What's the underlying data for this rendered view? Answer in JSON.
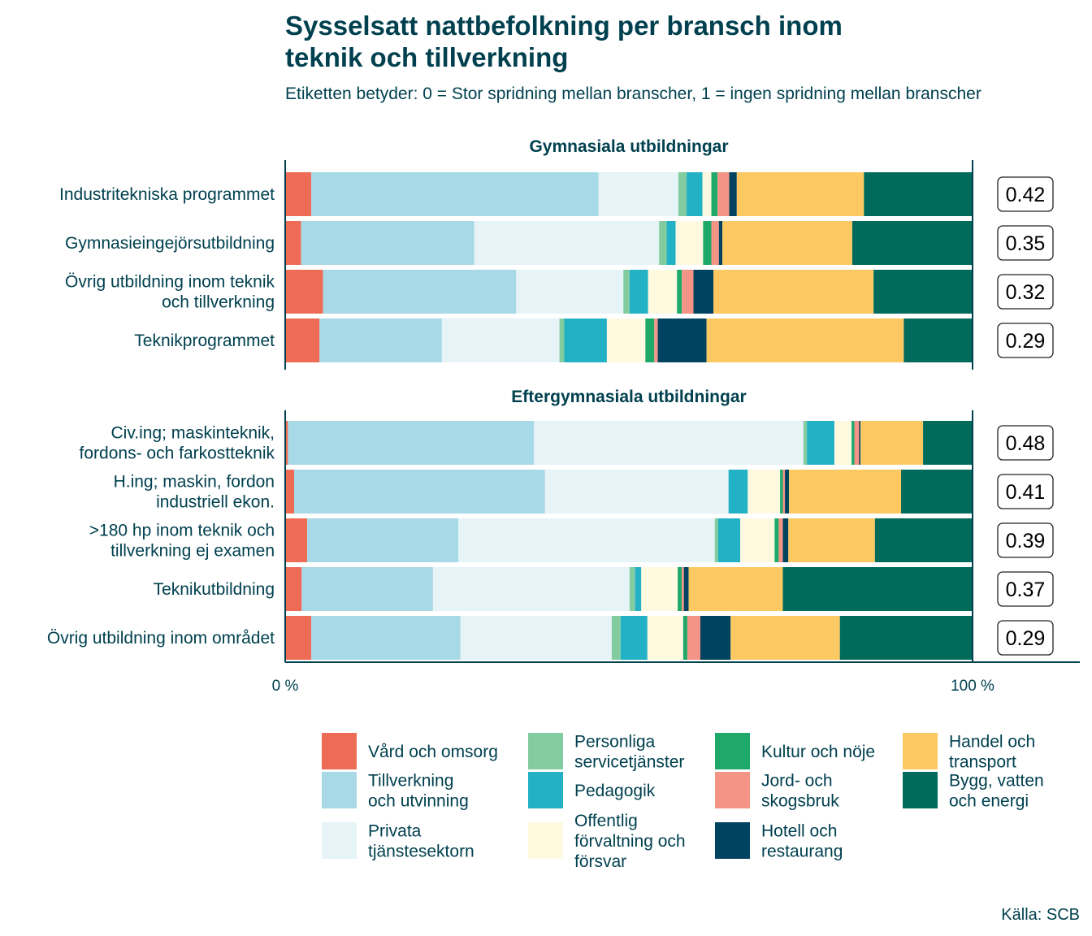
{
  "title_line1": "Sysselsatt nattbefolkning per bransch inom",
  "title_line2": "teknik och tillverkning",
  "subtitle": "Etiketten betyder: 0 = Stor spridning mellan branscher, 1 = ingen spridning mellan branscher",
  "source": "Källa: SCB",
  "chart_data": {
    "type": "bar",
    "orientation": "horizontal",
    "stacked": "percent",
    "xlim": [
      0,
      100
    ],
    "x_tick_labels": [
      "0 %",
      "100 %"
    ],
    "legend_position": "bottom",
    "series": [
      {
        "name": "Vård och omsorg",
        "color": "#ee6c55"
      },
      {
        "name": "Tillverkning och utvinning",
        "color": "#a8d9e6"
      },
      {
        "name": "Privata tjänstesektorn",
        "color": "#e6f3f7"
      },
      {
        "name": "Personliga servicetjänster",
        "color": "#82cc9f"
      },
      {
        "name": "Pedagogik",
        "color": "#23b1c6"
      },
      {
        "name": "Offentlig förvaltning och försvar",
        "color": "#fff9e0"
      },
      {
        "name": "Kultur och nöje",
        "color": "#1ea96a"
      },
      {
        "name": "Jord- och skogsbruk",
        "color": "#f39486"
      },
      {
        "name": "Hotell och restaurang",
        "color": "#004360"
      },
      {
        "name": "Handel och transport",
        "color": "#fcc862"
      },
      {
        "name": "Bygg, vatten och energi",
        "color": "#006b5b"
      }
    ],
    "panels": [
      {
        "title": "Gymnasiala utbildningar",
        "rows": [
          {
            "label": [
              "Industritekniska programmet"
            ],
            "score": "0.42",
            "values": [
              3.8,
              41.8,
              11.6,
              1.2,
              2.3,
              1.3,
              0.9,
              1.7,
              1.1,
              18.5,
              15.8
            ]
          },
          {
            "label": [
              "Gymnasieingejörsutbildning"
            ],
            "score": "0.35",
            "values": [
              2.3,
              25.2,
              26.9,
              1.1,
              1.3,
              4.0,
              1.2,
              1.1,
              0.5,
              18.9,
              17.5
            ]
          },
          {
            "label": [
              "Övrig utbildning inom teknik",
              "och tillverkning"
            ],
            "score": "0.32",
            "values": [
              5.5,
              28.1,
              15.6,
              0.9,
              2.7,
              4.2,
              0.7,
              1.7,
              2.9,
              23.3,
              14.4
            ]
          },
          {
            "label": [
              "Teknikprogrammet"
            ],
            "score": "0.29",
            "values": [
              5.0,
              17.8,
              17.1,
              0.7,
              6.2,
              5.6,
              1.3,
              0.5,
              7.1,
              28.7,
              10.0
            ]
          }
        ]
      },
      {
        "title": "Eftergymnasiala utbildningar",
        "rows": [
          {
            "label": [
              "Civ.ing; maskinteknik,",
              "fordons- och farkostteknik"
            ],
            "score": "0.48",
            "values": [
              0.4,
              35.8,
              39.2,
              0.5,
              4.0,
              2.5,
              0.4,
              0.7,
              0.2,
              9.1,
              7.2
            ]
          },
          {
            "label": [
              "H.ing; maskin, fordon",
              "industriell ekon."
            ],
            "score": "0.41",
            "values": [
              1.3,
              36.5,
              26.7,
              0.0,
              2.8,
              4.7,
              0.4,
              0.3,
              0.6,
              16.3,
              10.4
            ]
          },
          {
            "label": [
              ">180 hp inom teknik och",
              "tillverkning ej examen"
            ],
            "score": "0.39",
            "values": [
              3.2,
              22.0,
              37.3,
              0.5,
              3.2,
              5.0,
              0.6,
              0.6,
              0.8,
              12.6,
              14.2
            ]
          },
          {
            "label": [
              "Teknikutbildning"
            ],
            "score": "0.37",
            "values": [
              2.4,
              19.1,
              28.6,
              0.8,
              0.9,
              5.3,
              0.6,
              0.3,
              0.7,
              13.7,
              27.6
            ]
          },
          {
            "label": [
              "Övrig utbildning inom området"
            ],
            "score": "0.29",
            "values": [
              3.8,
              21.7,
              22.0,
              1.3,
              3.9,
              5.2,
              0.6,
              1.9,
              4.4,
              15.9,
              19.3
            ]
          }
        ]
      }
    ]
  },
  "legend": {
    "columns": [
      [
        {
          "series": 0,
          "lines": [
            "Vård och omsorg"
          ]
        },
        {
          "series": 1,
          "lines": [
            "Tillverkning",
            "och utvinning"
          ]
        },
        {
          "series": 2,
          "lines": [
            "Privata",
            "tjänstesektorn"
          ]
        }
      ],
      [
        {
          "series": 3,
          "lines": [
            "Personliga",
            "servicetjänster"
          ]
        },
        {
          "series": 4,
          "lines": [
            "Pedagogik"
          ]
        },
        {
          "series": 5,
          "lines": [
            "Offentlig",
            "förvaltning och",
            "försvar"
          ]
        }
      ],
      [
        {
          "series": 6,
          "lines": [
            "Kultur och nöje"
          ]
        },
        {
          "series": 7,
          "lines": [
            "Jord- och",
            "skogsbruk"
          ]
        },
        {
          "series": 8,
          "lines": [
            "Hotell och",
            "restaurang"
          ]
        }
      ],
      [
        {
          "series": 9,
          "lines": [
            "Handel och",
            "transport"
          ]
        },
        {
          "series": 10,
          "lines": [
            "Bygg, vatten",
            "och energi"
          ]
        }
      ]
    ]
  }
}
